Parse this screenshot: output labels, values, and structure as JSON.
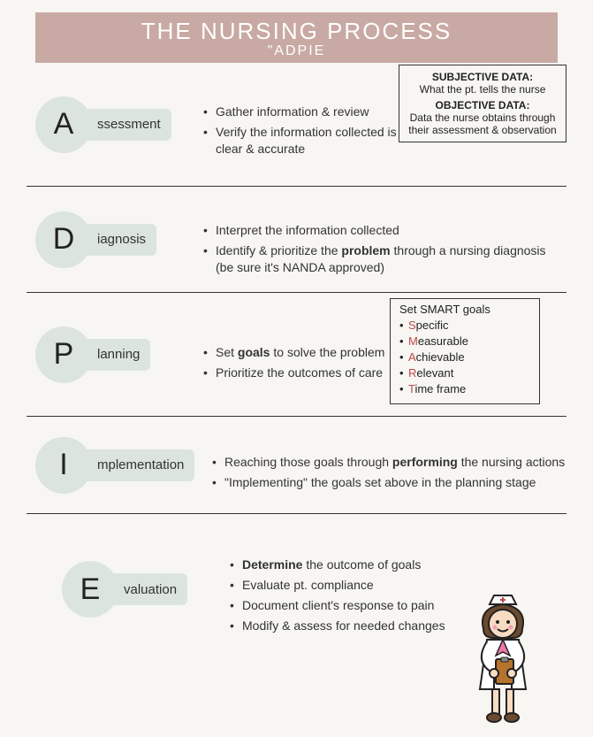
{
  "colors": {
    "background": "#f7f6f2",
    "header_bg": "#c9a9a4",
    "header_text": "#ffffff",
    "badge_bg": "#dbe4dd",
    "text": "#222222",
    "border": "#333333",
    "accent": "#c04848"
  },
  "header": {
    "title": "THE NURSING PROCESS",
    "subtitle": "\"ADPIE"
  },
  "sections": [
    {
      "letter": "A",
      "label": "ssessment",
      "bullets": [
        "Gather information & review",
        "Verify the information collected is clear & accurate"
      ]
    },
    {
      "letter": "D",
      "label": "iagnosis",
      "bullets": [
        "Interpret the information collected",
        "Identify & prioritize the <strong>problem</strong> through a nursing diagnosis (be sure it's NANDA approved)"
      ]
    },
    {
      "letter": "P",
      "label": "lanning",
      "bullets": [
        "Set <strong>goals</strong> to solve the problem",
        "Prioritize the outcomes of care"
      ]
    },
    {
      "letter": "I",
      "label": "mplementation",
      "bullets": [
        "Reaching those goals through <strong>performing</strong> the nursing actions",
        "\"Implementing\" the goals set above in the planning stage"
      ]
    },
    {
      "letter": "E",
      "label": "valuation",
      "bullets": [
        "<strong>Determine</strong> the outcome of goals",
        "Evaluate pt. compliance",
        "Document client's response to pain",
        "Modify & assess for needed changes"
      ]
    }
  ],
  "assessment_box": {
    "h1": "SUBJECTIVE DATA:",
    "t1": "What the pt. tells the nurse",
    "h2": "OBJECTIVE DATA:",
    "t2": "Data the nurse obtains through their assessment & observation"
  },
  "smart_box": {
    "title": "Set SMART goals",
    "items": [
      {
        "accent": "S",
        "rest": "pecific"
      },
      {
        "accent": "M",
        "rest": "easurable"
      },
      {
        "accent": "A",
        "rest": "chievable"
      },
      {
        "accent": "R",
        "rest": "elevant"
      },
      {
        "accent": "T",
        "rest": "ime frame"
      }
    ]
  }
}
